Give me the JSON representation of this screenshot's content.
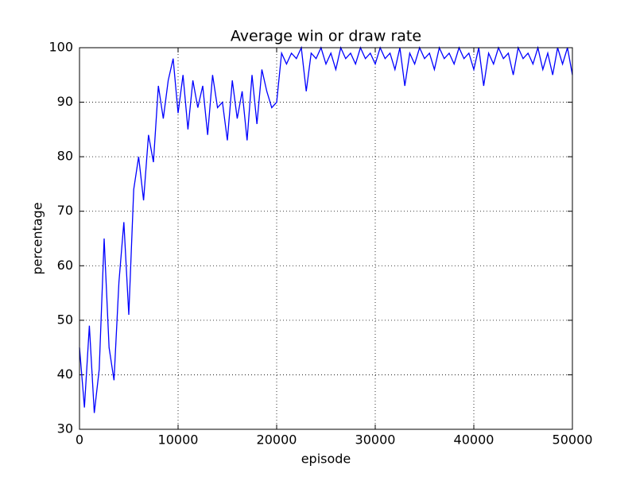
{
  "chart_data": {
    "type": "line",
    "title": "Average win or draw rate",
    "xlabel": "episode",
    "ylabel": "percentage",
    "x": [
      0,
      500,
      1000,
      1500,
      2000,
      2500,
      3000,
      3500,
      4000,
      4500,
      5000,
      5500,
      6000,
      6500,
      7000,
      7500,
      8000,
      8500,
      9000,
      9500,
      10000,
      10500,
      11000,
      11500,
      12000,
      12500,
      13000,
      13500,
      14000,
      14500,
      15000,
      15500,
      16000,
      16500,
      17000,
      17500,
      18000,
      18500,
      19000,
      19500,
      20000,
      20500,
      21000,
      21500,
      22000,
      22500,
      23000,
      23500,
      24000,
      24500,
      25000,
      25500,
      26000,
      26500,
      27000,
      27500,
      28000,
      28500,
      29000,
      29500,
      30000,
      30500,
      31000,
      31500,
      32000,
      32500,
      33000,
      33500,
      34000,
      34500,
      35000,
      35500,
      36000,
      36500,
      37000,
      37500,
      38000,
      38500,
      39000,
      39500,
      40000,
      40500,
      41000,
      41500,
      42000,
      42500,
      43000,
      43500,
      44000,
      44500,
      45000,
      45500,
      46000,
      46500,
      47000,
      47500,
      48000,
      48500,
      49000,
      49500,
      50000
    ],
    "series": [
      {
        "name": "win or draw rate",
        "color": "#0000ff",
        "values": [
          45,
          34,
          49,
          33,
          41,
          65,
          45,
          39,
          57,
          68,
          51,
          74,
          80,
          72,
          84,
          79,
          93,
          87,
          94,
          98,
          88,
          95,
          85,
          94,
          89,
          93,
          84,
          95,
          89,
          90,
          83,
          94,
          87,
          92,
          83,
          95,
          86,
          96,
          92,
          89,
          90,
          99,
          97,
          99,
          98,
          100,
          92,
          99,
          98,
          100,
          97,
          99,
          96,
          100,
          98,
          99,
          97,
          100,
          98,
          99,
          97,
          100,
          98,
          99,
          96,
          100,
          93,
          99,
          97,
          100,
          98,
          99,
          96,
          100,
          98,
          99,
          97,
          100,
          98,
          99,
          96,
          100,
          93,
          99,
          97,
          100,
          98,
          99,
          95,
          100,
          98,
          99,
          97,
          100,
          96,
          99,
          95,
          100,
          97,
          100,
          95
        ]
      }
    ],
    "xlim": [
      0,
      50000
    ],
    "ylim": [
      30,
      100
    ],
    "xticks": [
      0,
      10000,
      20000,
      30000,
      40000,
      50000
    ],
    "yticks": [
      30,
      40,
      50,
      60,
      70,
      80,
      90,
      100
    ],
    "grid": true
  }
}
